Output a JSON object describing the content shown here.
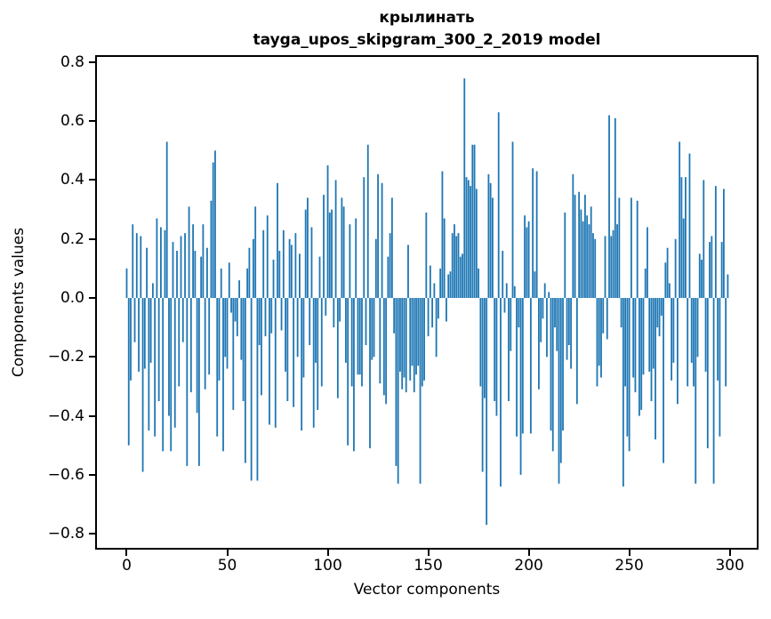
{
  "figure": {
    "background": "#ffffff"
  },
  "chart_data": {
    "type": "bar",
    "title": "крылинать",
    "subtitle": "tayga_upos_skipgram_300_2_2019 model",
    "xlabel": "Vector components",
    "ylabel": "Components values",
    "bar_color": "#1f77b4",
    "axis_color": "#000000",
    "grid": false,
    "x_ticks": [
      0,
      50,
      100,
      150,
      200,
      250,
      300
    ],
    "y_ticks": [
      0.8,
      0.6,
      0.4,
      0.2,
      0.0,
      -0.2,
      -0.4,
      -0.6,
      -0.8
    ],
    "y_tick_labels": [
      "0.8",
      "0.6",
      "0.4",
      "0.2",
      "0.0",
      "−0.2",
      "−0.4",
      "−0.6",
      "−0.8"
    ],
    "xlim": [
      -15.7,
      314.3
    ],
    "ylim": [
      -0.854,
      0.824
    ],
    "categories_note": "x is vector component index 0..299",
    "values": [
      0.1,
      -0.5,
      -0.28,
      0.25,
      -0.15,
      0.22,
      -0.25,
      0.21,
      -0.59,
      -0.24,
      0.17,
      -0.45,
      -0.22,
      0.05,
      -0.47,
      0.27,
      -0.35,
      0.24,
      -0.52,
      0.23,
      0.53,
      -0.4,
      -0.52,
      0.19,
      -0.44,
      0.16,
      -0.3,
      0.21,
      -0.15,
      0.22,
      -0.57,
      0.31,
      -0.32,
      0.25,
      0.16,
      -0.39,
      -0.57,
      0.14,
      0.25,
      -0.31,
      0.17,
      -0.26,
      0.33,
      0.46,
      0.5,
      -0.47,
      -0.28,
      0.1,
      -0.52,
      -0.2,
      -0.24,
      0.12,
      -0.05,
      -0.38,
      -0.08,
      -0.13,
      0.06,
      -0.21,
      -0.35,
      -0.56,
      0.1,
      0.17,
      -0.62,
      0.2,
      0.31,
      -0.62,
      -0.16,
      -0.33,
      0.23,
      -0.13,
      0.28,
      -0.43,
      -0.12,
      0.13,
      -0.44,
      0.39,
      0.16,
      -0.11,
      0.23,
      -0.25,
      -0.35,
      0.2,
      0.18,
      -0.37,
      0.22,
      -0.2,
      0.15,
      -0.45,
      -0.27,
      0.3,
      0.34,
      -0.16,
      0.24,
      -0.44,
      -0.22,
      -0.38,
      0.14,
      -0.3,
      0.35,
      -0.06,
      0.45,
      0.29,
      0.3,
      -0.1,
      0.4,
      -0.34,
      -0.08,
      0.34,
      0.31,
      -0.22,
      -0.5,
      0.25,
      -0.3,
      -0.52,
      0.27,
      -0.26,
      -0.26,
      -0.3,
      0.41,
      -0.16,
      0.52,
      -0.51,
      -0.21,
      -0.2,
      0.2,
      0.42,
      -0.29,
      0.39,
      -0.33,
      -0.36,
      0.14,
      0.22,
      0.34,
      -0.12,
      -0.57,
      -0.63,
      -0.25,
      -0.31,
      -0.27,
      -0.32,
      0.18,
      -0.28,
      -0.23,
      -0.32,
      -0.26,
      -0.23,
      -0.63,
      -0.3,
      -0.28,
      0.29,
      -0.13,
      0.11,
      -0.1,
      0.05,
      -0.2,
      -0.07,
      0.1,
      0.43,
      0.27,
      -0.08,
      0.08,
      0.09,
      0.22,
      0.25,
      0.21,
      0.22,
      0.14,
      0.15,
      0.745,
      0.41,
      0.4,
      0.38,
      0.52,
      0.52,
      0.37,
      0.1,
      -0.3,
      -0.59,
      -0.34,
      -0.77,
      0.42,
      0.39,
      0.34,
      -0.35,
      -0.4,
      0.63,
      -0.64,
      0.16,
      -0.05,
      0.05,
      -0.35,
      -0.18,
      0.53,
      0.04,
      -0.47,
      -0.1,
      -0.6,
      -0.46,
      0.28,
      0.24,
      0.26,
      -0.46,
      0.44,
      0.09,
      0.43,
      -0.31,
      -0.15,
      -0.07,
      0.05,
      -0.2,
      0.02,
      -0.45,
      -0.52,
      -0.1,
      -0.18,
      -0.63,
      -0.56,
      -0.45,
      0.29,
      -0.21,
      -0.16,
      -0.24,
      0.42,
      0.35,
      -0.36,
      0.36,
      0.3,
      0.26,
      0.35,
      0.28,
      0.25,
      0.31,
      0.22,
      0.2,
      -0.3,
      -0.23,
      -0.27,
      -0.12,
      0.21,
      -0.14,
      0.62,
      0.21,
      0.23,
      0.61,
      0.25,
      0.34,
      -0.1,
      -0.64,
      -0.3,
      -0.47,
      -0.52,
      0.34,
      -0.27,
      -0.32,
      0.33,
      -0.4,
      -0.38,
      -0.26,
      0.1,
      0.24,
      -0.25,
      -0.35,
      -0.24,
      -0.48,
      -0.1,
      -0.13,
      -0.06,
      -0.56,
      0.12,
      0.17,
      0.05,
      -0.28,
      -0.22,
      0.2,
      -0.36,
      0.53,
      0.41,
      0.27,
      0.41,
      -0.3,
      0.49,
      -0.22,
      -0.3,
      -0.63,
      -0.2,
      0.15,
      0.13,
      0.4,
      -0.25,
      -0.51,
      0.19,
      0.21,
      -0.63,
      0.38,
      -0.28,
      -0.47,
      0.19,
      0.37,
      -0.3,
      0.08
    ]
  }
}
